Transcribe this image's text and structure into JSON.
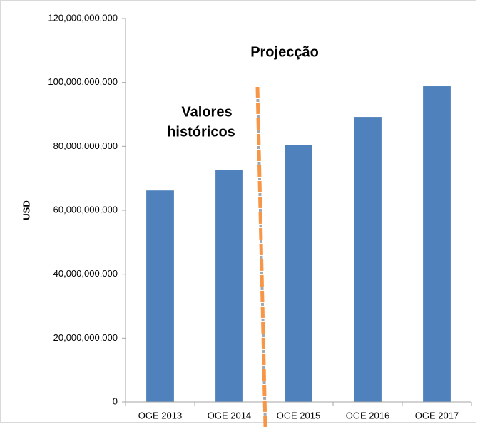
{
  "chart_data": {
    "type": "bar",
    "y_label": "USD",
    "annotations": [
      "Projecção",
      "Valores",
      "históricos"
    ],
    "categories": [
      "OGE 2013",
      "OGE 2014",
      "OGE 2015",
      "OGE 2016",
      "OGE 2017"
    ],
    "values": [
      66200000000,
      72500000000,
      80500000000,
      89200000000,
      98800000000
    ],
    "color": "#4f81bd",
    "ylim": [
      0,
      120000000000
    ],
    "yticks": [
      0,
      {
        "value": 20000000000,
        "label": "20,000,000,000"
      },
      {
        "value": 40000000000,
        "label": "40,000,000,000"
      },
      {
        "value": 60000000000,
        "label": "60,000,000,000"
      },
      {
        "value": 80000000000,
        "label": "80,000,000,000"
      },
      {
        "value": 100000000000,
        "label": "100,000,000,000"
      },
      {
        "value": 120000000000,
        "label": "120,000,000,000"
      }
    ],
    "grid": false
  }
}
